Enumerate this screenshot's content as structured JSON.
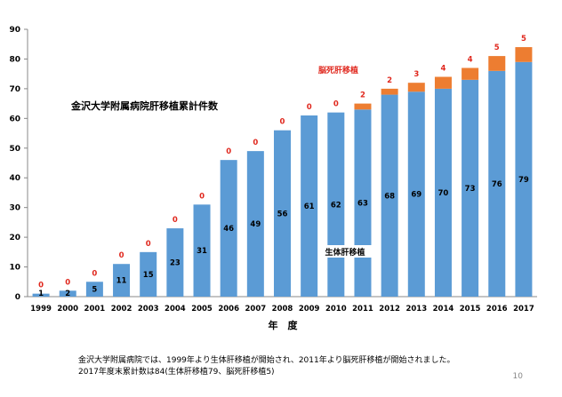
{
  "chart_data": {
    "type": "bar",
    "stacked": true,
    "title": "金沢大学附属病院肝移植累計件数",
    "xlabel": "年　度",
    "ylabel": "",
    "ylim": [
      0,
      90
    ],
    "y_ticks": [
      0,
      10,
      20,
      30,
      40,
      50,
      60,
      70,
      80,
      90
    ],
    "grid": false,
    "categories": [
      "1999",
      "2000",
      "2001",
      "2002",
      "2003",
      "2004",
      "2005",
      "2006",
      "2007",
      "2008",
      "2009",
      "2010",
      "2011",
      "2012",
      "2013",
      "2014",
      "2015",
      "2016",
      "2017"
    ],
    "series": [
      {
        "name": "生体肝移植",
        "color": "#5b9bd5",
        "values": [
          1,
          2,
          5,
          11,
          15,
          23,
          31,
          46,
          49,
          56,
          61,
          62,
          63,
          68,
          69,
          70,
          73,
          76,
          79
        ]
      },
      {
        "name": "脳死肝移植",
        "color": "#ed7d31",
        "values": [
          0,
          0,
          0,
          0,
          0,
          0,
          0,
          0,
          0,
          0,
          0,
          0,
          2,
          2,
          3,
          4,
          4,
          5,
          5
        ]
      }
    ]
  },
  "colors": {
    "deceased_label": "#e0281e",
    "axis": "#888888"
  },
  "footnote": {
    "line1": "金沢大学附属病院では、1999年より生体肝移植が開始され、2011年より脳死肝移植が開始されました。",
    "line2": "2017年度末累計数は84(生体肝移植79、脳死肝移植5)"
  },
  "page_number": "10"
}
